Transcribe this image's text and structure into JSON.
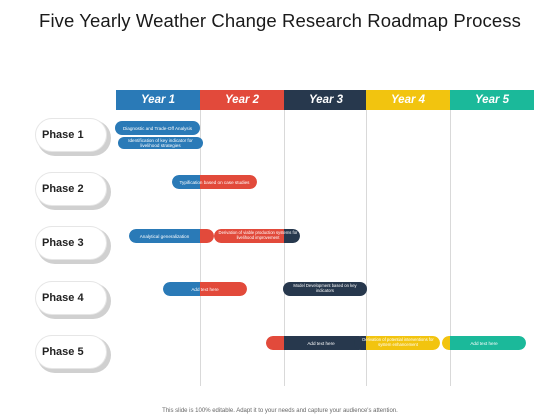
{
  "title": "Five Yearly Weather Change Research Roadmap Process",
  "years": [
    {
      "label": "Year 1",
      "color": "#2a7ab7"
    },
    {
      "label": "Year 2",
      "color": "#e24a3b"
    },
    {
      "label": "Year 3",
      "color": "#27384d"
    },
    {
      "label": "Year 4",
      "color": "#f2c40f"
    },
    {
      "label": "Year 5",
      "color": "#1bb99a"
    }
  ],
  "phases": [
    "Phase 1",
    "Phase 2",
    "Phase 3",
    "Phase 4",
    "Phase 5"
  ],
  "tasks": {
    "p1_a": "Diagnostic and Trade-Off Analysis",
    "p1_b": "Identification of key indicator for livelihood strategies",
    "p2_a": "Typification based on case studies",
    "p3_a": "Analytical generalization",
    "p3_b": "Derivation of viable production systems for livelihood improvement",
    "p4_a": "Add text here",
    "p4_b": "Model Development based on key indicators",
    "p5_a": "Add text here",
    "p5_b": "Derivation of potential interventions for system enhancement",
    "p5_c": "Add text here"
  },
  "footer": "This slide is 100% editable. Adapt it to your needs and capture your audience's attention."
}
